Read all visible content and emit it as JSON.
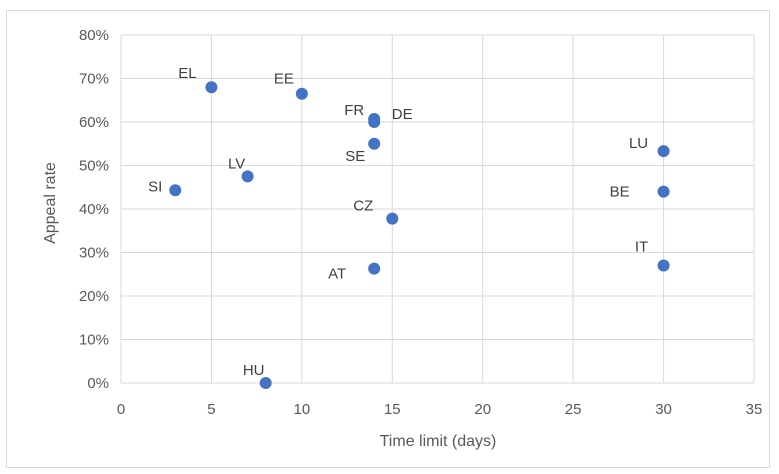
{
  "chart_data": {
    "type": "scatter",
    "title": "",
    "xlabel": "Time limit (days)",
    "ylabel": "Appeal rate",
    "xlim": [
      0,
      35
    ],
    "ylim": [
      0,
      0.8
    ],
    "x_ticks": [
      "0",
      "5",
      "10",
      "15",
      "20",
      "25",
      "30",
      "35"
    ],
    "y_ticks": [
      "0%",
      "10%",
      "20%",
      "30%",
      "40%",
      "50%",
      "60%",
      "70%",
      "80%"
    ],
    "grid": true,
    "marker_color": "#4472c4",
    "points": [
      {
        "label": "EL",
        "x": 5,
        "y": 0.68
      },
      {
        "label": "EE",
        "x": 10,
        "y": 0.665
      },
      {
        "label": "FR",
        "x": 14,
        "y": 0.607
      },
      {
        "label": "DE",
        "x": 14,
        "y": 0.6
      },
      {
        "label": "SE",
        "x": 14,
        "y": 0.55
      },
      {
        "label": "LV",
        "x": 7,
        "y": 0.475
      },
      {
        "label": "SI",
        "x": 3,
        "y": 0.443
      },
      {
        "label": "CZ",
        "x": 15,
        "y": 0.378
      },
      {
        "label": "AT",
        "x": 14,
        "y": 0.263
      },
      {
        "label": "HU",
        "x": 8,
        "y": 0.0
      },
      {
        "label": "LU",
        "x": 30,
        "y": 0.533
      },
      {
        "label": "BE",
        "x": 30,
        "y": 0.44
      },
      {
        "label": "IT",
        "x": 30,
        "y": 0.27
      }
    ]
  }
}
